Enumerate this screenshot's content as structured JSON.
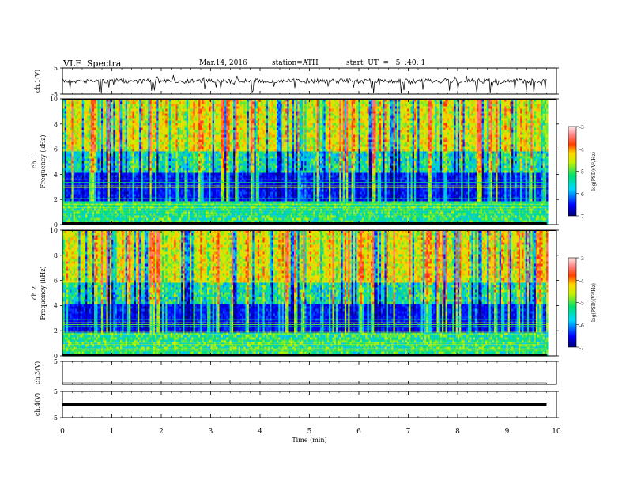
{
  "header": {
    "title": "VLF  Spectra",
    "date": "Mar.14, 2016",
    "station": "station=ATH",
    "start": "start  UT  =   5  :40: 1"
  },
  "chart_data": {
    "type": "spectrogram",
    "xlabel": "Time  (min)",
    "xlim": [
      0,
      10
    ],
    "x_ticks": [
      "0",
      "1",
      "2",
      "3",
      "4",
      "5",
      "6",
      "7",
      "8",
      "9",
      "10"
    ],
    "data_end_min": 9.8,
    "panels": [
      {
        "id": "ch1_wave",
        "type": "line",
        "ylabel": "ch.1(V)",
        "ylim": [
          -5,
          5
        ],
        "y_ticks": [
          "5",
          "-5"
        ]
      },
      {
        "id": "ch1_spec",
        "type": "heatmap",
        "ylabel_top": "ch.1",
        "ylabel": "Frequency  (kHz)",
        "ylim": [
          0,
          10
        ],
        "y_ticks": [
          "0",
          "2",
          "4",
          "6",
          "8",
          "10"
        ],
        "colorbar": {
          "label": "log(PSD)(V²/Hz)",
          "range": [
            -7,
            -3
          ],
          "ticks": [
            "-3",
            "-4",
            "-5",
            "-6",
            "-7"
          ]
        }
      },
      {
        "id": "ch2_spec",
        "type": "heatmap",
        "ylabel_top": "ch.2",
        "ylabel": "Frequency  (kHz)",
        "ylim": [
          0,
          10
        ],
        "y_ticks": [
          "0",
          "2",
          "4",
          "6",
          "8",
          "10"
        ],
        "colorbar": {
          "label": "log(PSD)(V²/Hz)",
          "range": [
            -7,
            -3
          ],
          "ticks": [
            "-3",
            "-4",
            "-5",
            "-6",
            "-7"
          ]
        }
      },
      {
        "id": "ch3_wave",
        "type": "line",
        "ylabel": "ch.3(V)",
        "ylim": [
          -5,
          5
        ],
        "y_ticks": [
          "5"
        ]
      },
      {
        "id": "ch4_wave",
        "type": "line",
        "ylabel": "ch.4(V)",
        "ylim": [
          -5,
          5
        ],
        "y_ticks": [
          "5",
          "-5"
        ]
      }
    ]
  }
}
